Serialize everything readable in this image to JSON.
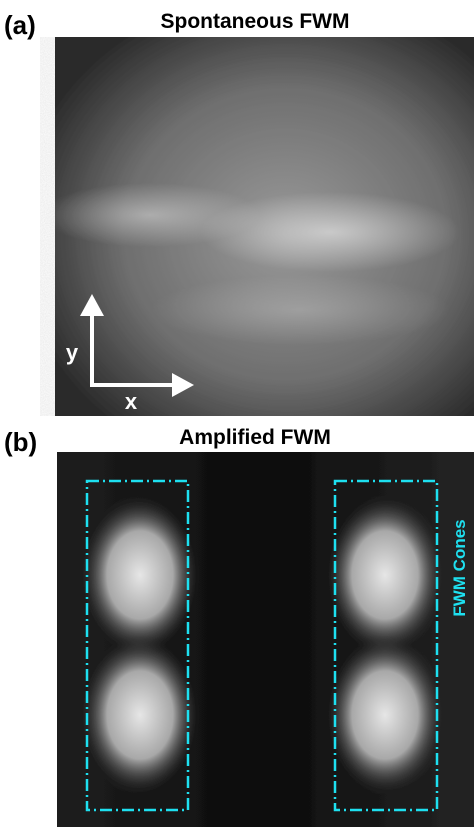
{
  "panels": [
    {
      "label": "(a)",
      "title": "Spontaneous FWM",
      "axis_labels": {
        "y": "y",
        "x": "x"
      }
    },
    {
      "label": "(b)",
      "title": "Amplified FWM",
      "annotation": "FWM Cones"
    }
  ]
}
